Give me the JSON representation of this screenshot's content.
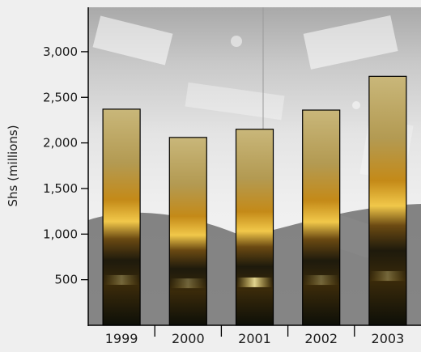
{
  "chart_data": {
    "type": "bar",
    "title": "",
    "xlabel": "",
    "ylabel": "Shs (millions)",
    "ylim": [
      0,
      3400
    ],
    "yticks": [
      500,
      1000,
      1500,
      2000,
      2500,
      3000
    ],
    "ytick_labels": [
      "500",
      "1,000",
      "1,500",
      "2,000",
      "2,500",
      "3,000"
    ],
    "categories": [
      "1999",
      "2000",
      "2001",
      "2002",
      "2003"
    ],
    "values": [
      2370,
      2060,
      2150,
      2360,
      2730
    ],
    "grid": false,
    "legend": "none",
    "background": "photographic collage of banknotes and coins over a sunset seascape",
    "bar_colors": {
      "top": "#c9b77a",
      "mid": "#b8860b",
      "glow": "#f4d35e",
      "bottom": "#0d0f08",
      "edge": "#000000"
    }
  }
}
